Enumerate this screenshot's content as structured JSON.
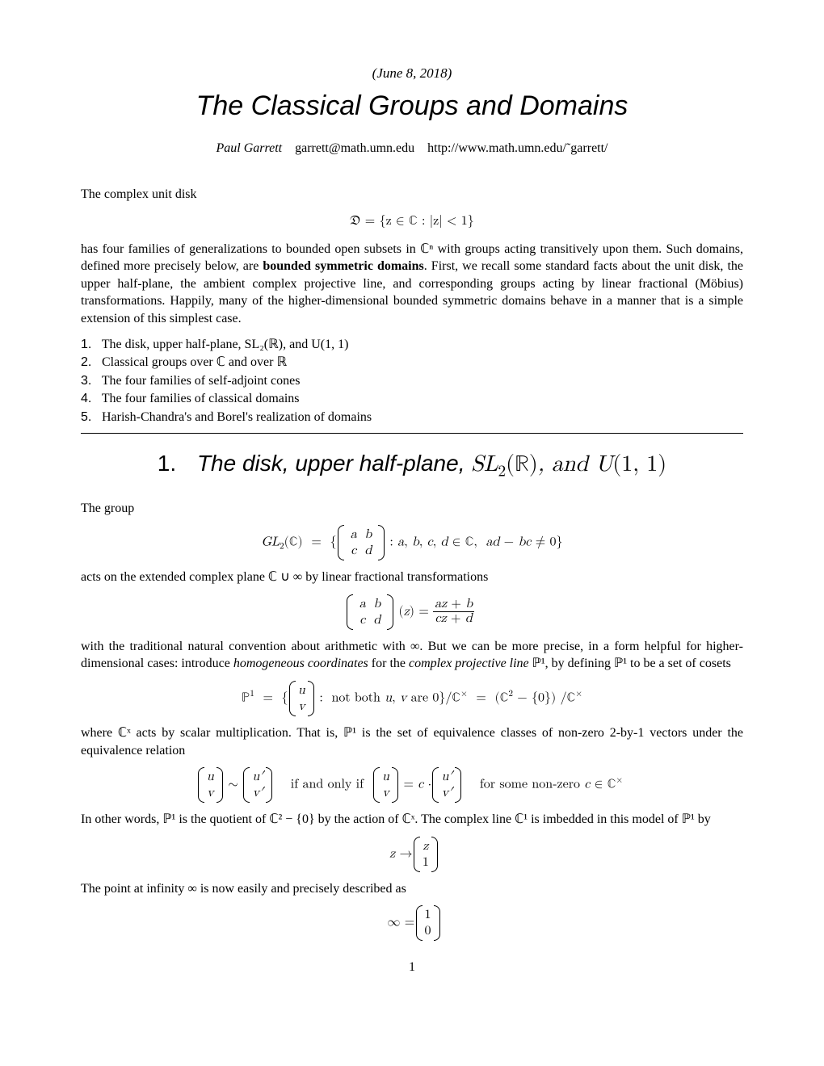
{
  "date": "June 8, 2018",
  "title": "The Classical Groups and Domains",
  "author": "Paul Garrett",
  "email": "garrett@math.umn.edu",
  "homepage": "http://www.math.umn.edu/˜garrett/",
  "intro_lead": "The complex unit disk",
  "eq_disk": "𝔇 = {z ∈ ℂ : |z| < 1}",
  "intro_para": "has four families of generalizations to bounded open subsets in ℂⁿ with groups acting transitively upon them. Such domains, defined more precisely below, are ",
  "intro_bold": "bounded symmetric domains",
  "intro_para2": ". First, we recall some standard facts about the unit disk, the upper half-plane, the ambient complex projective line, and corresponding groups acting by linear fractional (Möbius) transformations. Happily, many of the higher-dimensional bounded symmetric domains behave in a manner that is a simple extension of this simplest case.",
  "toc": [
    "The disk, upper half-plane, SL₂(ℝ), and U(1, 1)",
    "Classical groups over ℂ and over ℝ",
    "The four families of self-adjoint cones",
    "The four families of classical domains",
    "Harish-Chandra's and Borel's realization of domains"
  ],
  "section1_title_prefix": "The disk, upper half-plane, ",
  "section1_title_math": "SL₂(ℝ), and U(1, 1)",
  "body": {
    "p1": "The group",
    "p2": "acts on the extended complex plane ℂ ∪ ∞ by linear fractional transformations",
    "p3_a": "with the traditional natural convention about arithmetic with ∞. But we can be more precise, in a form helpful for higher-dimensional cases: introduce ",
    "p3_i1": "homogeneous coordinates",
    "p3_b": " for the ",
    "p3_i2": "complex projective line",
    "p3_c": " ℙ¹, by defining ℙ¹ to be a set of cosets",
    "p4": "where ℂˣ acts by scalar multiplication. That is, ℙ¹ is the set of equivalence classes of non-zero 2-by-1 vectors under the equivalence relation",
    "p5": "In other words, ℙ¹ is the quotient of ℂ² − {0} by the action of ℂˣ. The complex line ℂ¹ is imbedded in this model of ℙ¹ by",
    "p6": "The point at infinity ∞ is now easily and precisely described as"
  },
  "page_number": "1",
  "colors": {
    "text": "#000000",
    "background": "#ffffff",
    "rule": "#000000"
  },
  "typography": {
    "body_font": "Computer Modern serif",
    "body_size_pt": 11,
    "title_font": "sans italic",
    "title_size_pt": 24,
    "section_size_pt": 20
  }
}
